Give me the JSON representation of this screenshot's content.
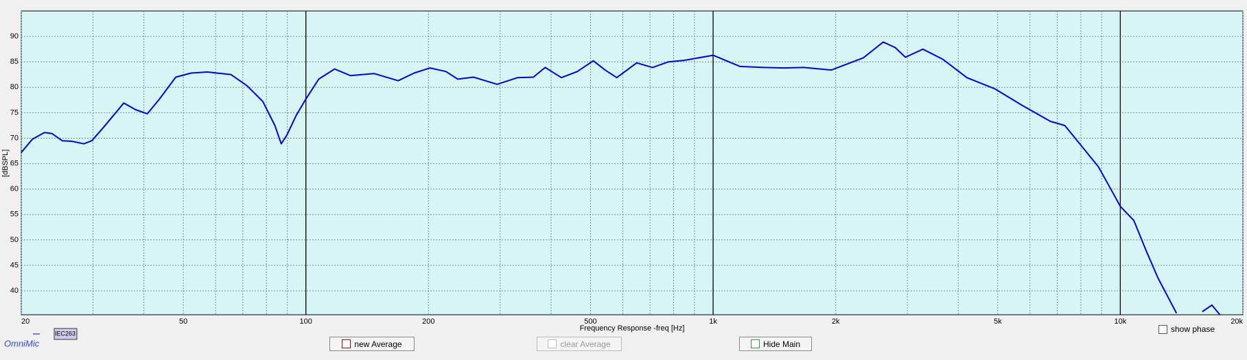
{
  "chart_data": {
    "type": "line",
    "xlabel": "Frequency Response -freq [Hz]",
    "ylabel": "[dBSPL]",
    "xscale": "log",
    "xlim": [
      20,
      20000
    ],
    "ylim": [
      35.3,
      95
    ],
    "xticks": [
      20,
      50,
      100,
      200,
      500,
      {
        "value": 1000,
        "label": "1k"
      },
      {
        "value": 2000,
        "label": "2k"
      },
      {
        "value": 5000,
        "label": "5k"
      },
      {
        "value": 10000,
        "label": "10k"
      },
      {
        "value": 20000,
        "label": "20k"
      }
    ],
    "yticks": [
      40,
      45,
      50,
      55,
      60,
      65,
      70,
      75,
      80,
      85,
      90
    ],
    "xminor": [
      30,
      40,
      60,
      70,
      80,
      90,
      300,
      400,
      600,
      700,
      800,
      900,
      3000,
      4000,
      6000,
      7000,
      8000,
      9000
    ],
    "xmajor": [
      100,
      1000,
      10000
    ],
    "grid": true,
    "plot_color": "#d8f5f5",
    "x": [
      20,
      21.3,
      22.8,
      23.8,
      25.2,
      26.6,
      28.5,
      29.8,
      31.9,
      35.7,
      38.2,
      40.8,
      43.7,
      47.9,
      52.3,
      57.3,
      65.5,
      71.7,
      78.4,
      83.9,
      87,
      89.8,
      94.7,
      100,
      107.5,
      117.6,
      128.6,
      147.2,
      168.5,
      184.5,
      201.8,
      220.8,
      236,
      258,
      295,
      331,
      362,
      387,
      424,
      464,
      508,
      543,
      580,
      649,
      710,
      777,
      850,
      1000,
      1165,
      1332,
      1491,
      1668,
      1953,
      2339,
      2617,
      2800,
      2967,
      3274,
      3667,
      4199,
      4918,
      5754,
      6736,
      7306,
      8064,
      8831,
      9447,
      10000,
      10800,
      11560,
      12380,
      13740,
      14800,
      15900,
      16780,
      17560
    ],
    "series": [
      {
        "name": "IEC263",
        "color": "#0000ee",
        "values": [
          67.2,
          69.8,
          71.1,
          70.9,
          69.5,
          69.4,
          68.9,
          69.5,
          72.2,
          76.9,
          75.6,
          74.8,
          77.7,
          82.0,
          82.8,
          83.0,
          82.5,
          80.3,
          77.2,
          72.5,
          68.9,
          70.6,
          74.5,
          77.7,
          81.6,
          83.6,
          82.3,
          82.7,
          81.3,
          82.8,
          83.8,
          83.1,
          81.6,
          82.0,
          80.6,
          81.9,
          82.0,
          83.9,
          81.9,
          83.1,
          85.2,
          83.4,
          81.9,
          84.8,
          83.9,
          85.0,
          85.3,
          86.3,
          84.1,
          83.9,
          83.8,
          83.9,
          83.4,
          85.8,
          88.9,
          87.8,
          85.9,
          87.5,
          85.5,
          81.9,
          79.7,
          76.4,
          73.3,
          72.5,
          68.3,
          64.4,
          60.2,
          56.6,
          53.8,
          48.0,
          42.5,
          35.6,
          null,
          35.9,
          37.2,
          35.3
        ]
      }
    ]
  },
  "ui": {
    "brand": "OmniMic",
    "buttons": [
      "new Average",
      "clear Average",
      "Hide Main"
    ],
    "checkbox": "show phase"
  }
}
